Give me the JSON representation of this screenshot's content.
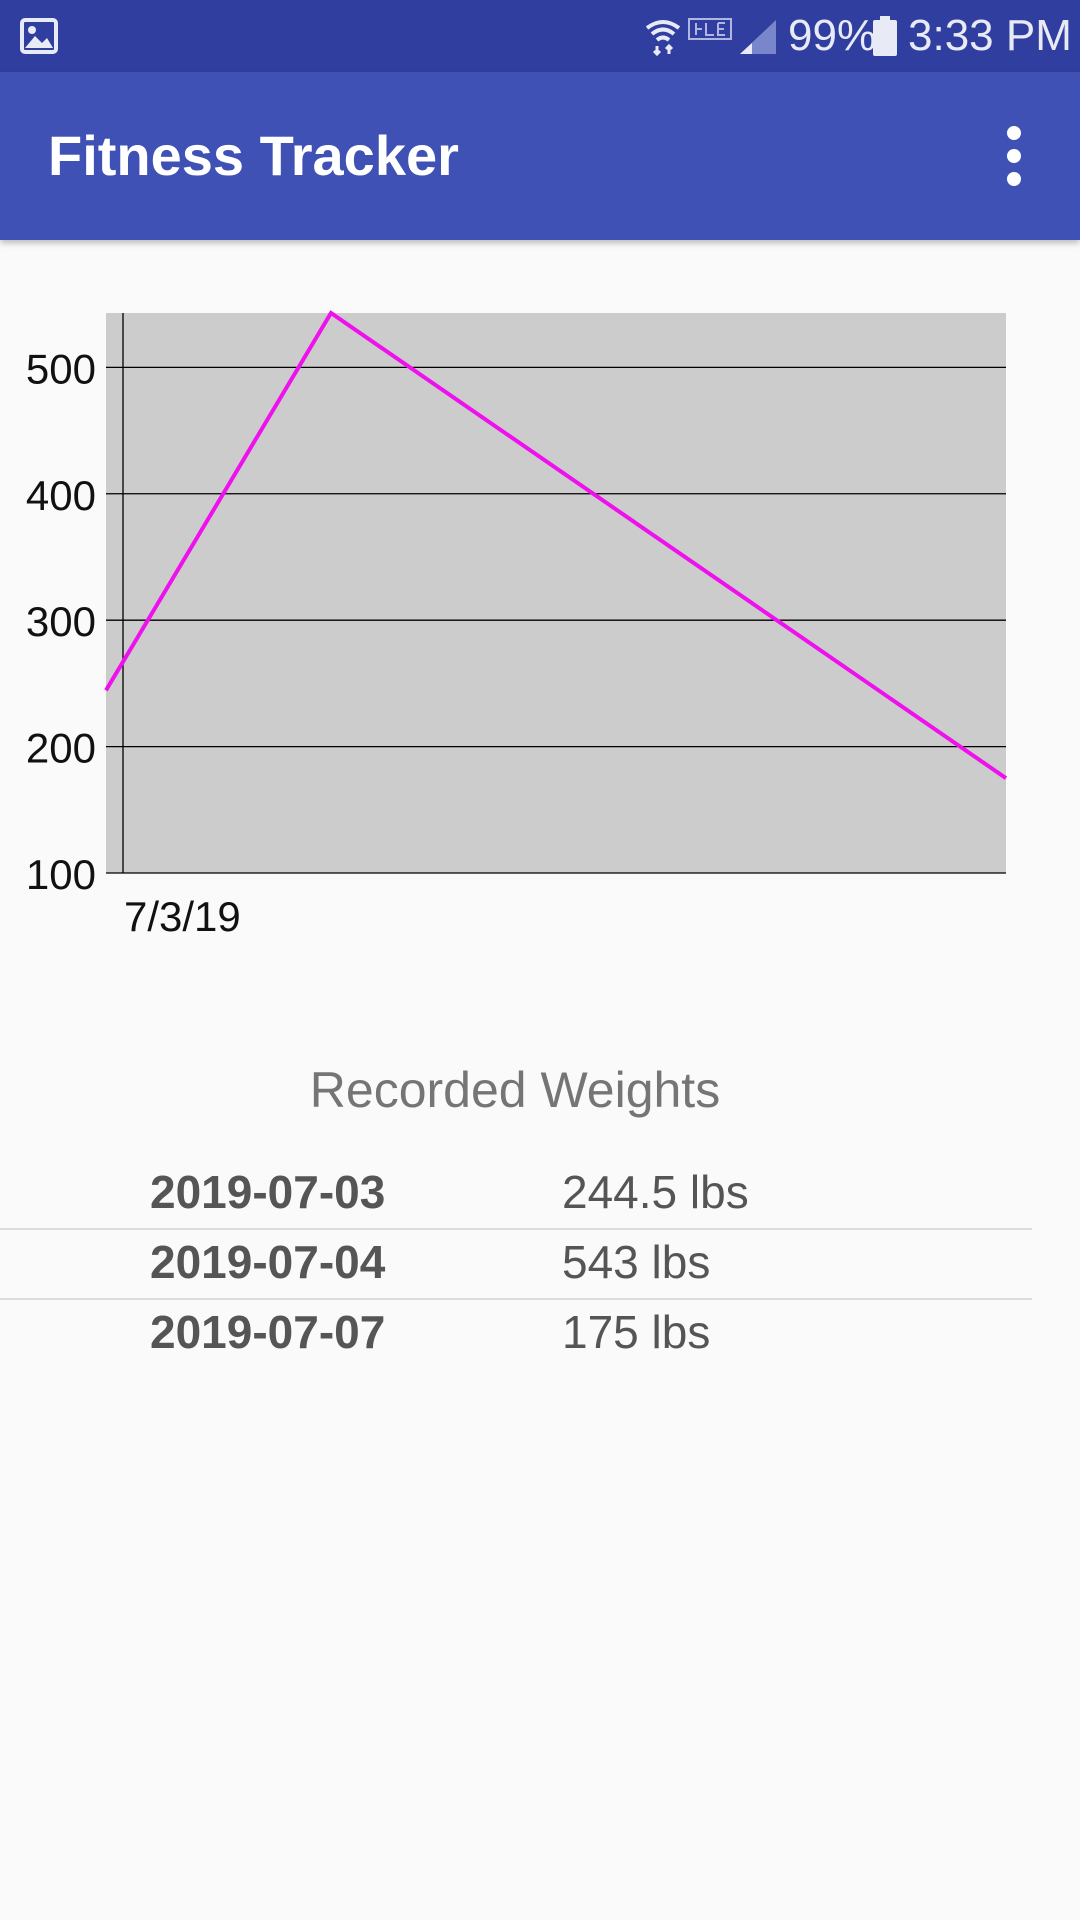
{
  "status_bar": {
    "battery_percent": "99%",
    "time": "3:33 PM",
    "icons": [
      "gallery-icon",
      "wifi-icon",
      "volte-icon",
      "signal-icon",
      "battery-icon"
    ]
  },
  "app_bar": {
    "title": "Fitness Tracker",
    "menu_icon": "more-vert-icon"
  },
  "colors": {
    "status_bar": "#303f9f",
    "app_bar": "#3f51b5",
    "chart_background": "#cccccc",
    "series_line": "#ee11ee"
  },
  "chart_data": {
    "type": "line",
    "x": [
      "2019-07-03",
      "2019-07-04",
      "2019-07-07"
    ],
    "series": [
      {
        "values": [
          244.5,
          543,
          175
        ]
      }
    ],
    "x_tick_labels": [
      "7/3/19"
    ],
    "y_ticks": [
      100,
      200,
      300,
      400,
      500
    ],
    "ylim": [
      100,
      543
    ],
    "grid": true
  },
  "recorded_weights": {
    "title": "Recorded Weights",
    "rows": [
      {
        "date": "2019-07-03",
        "weight": "244.5 lbs"
      },
      {
        "date": "2019-07-04",
        "weight": "543 lbs"
      },
      {
        "date": "2019-07-07",
        "weight": "175 lbs"
      }
    ]
  }
}
